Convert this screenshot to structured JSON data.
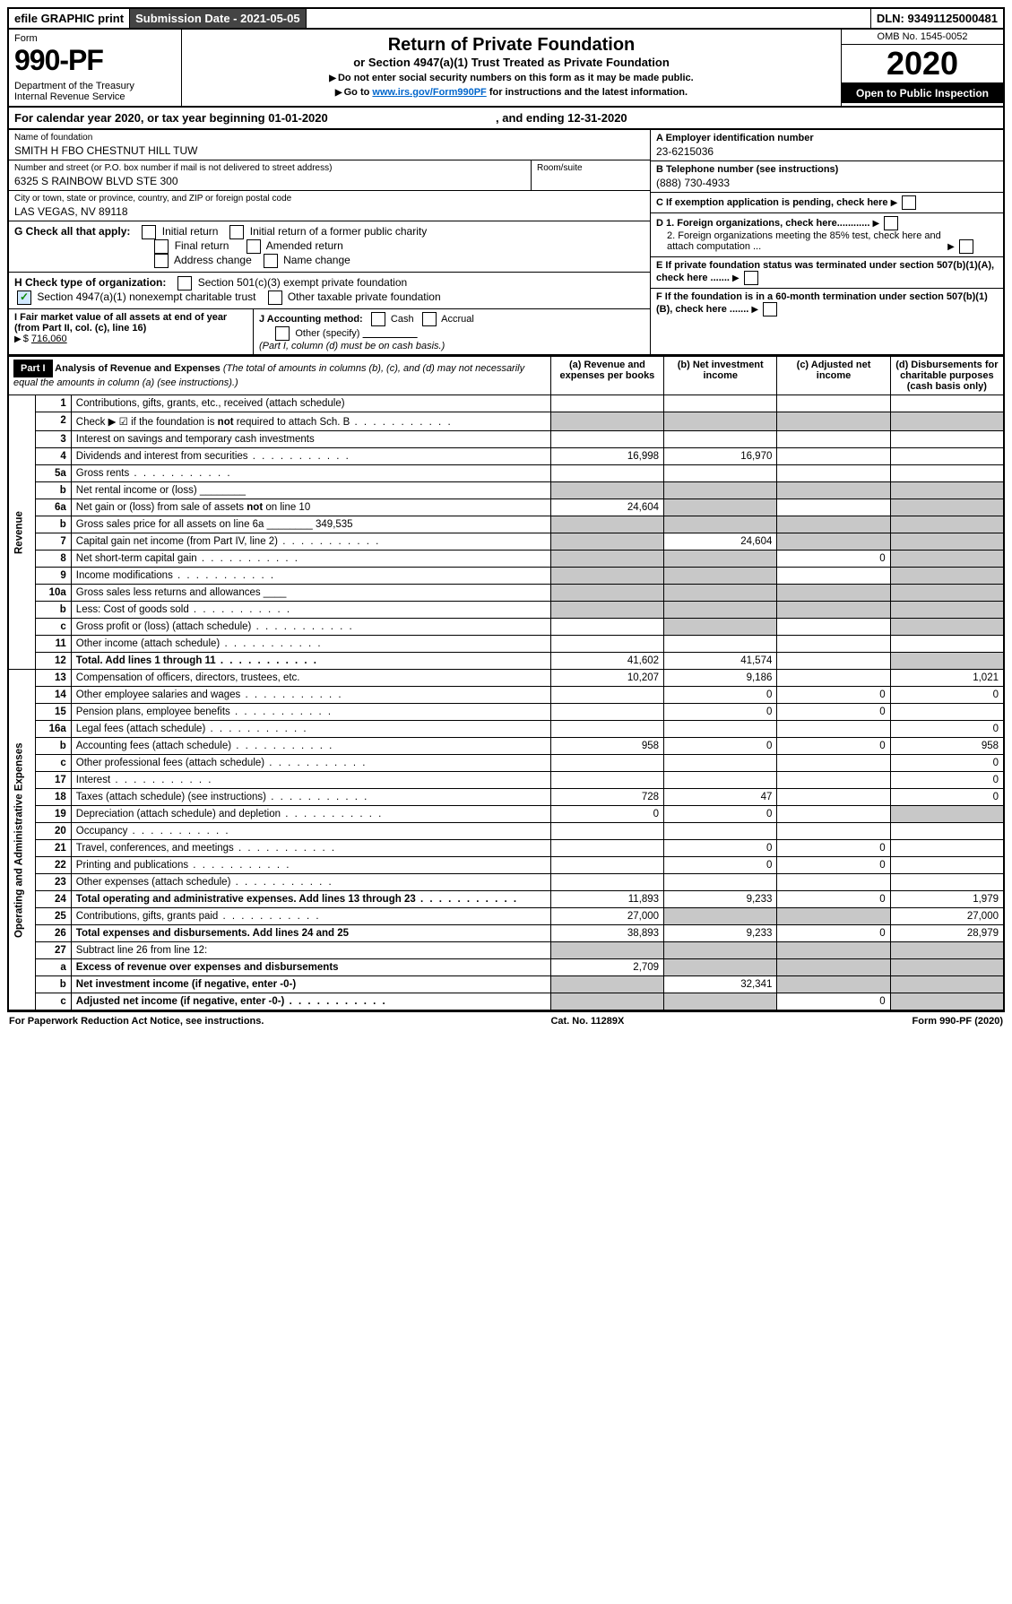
{
  "topbar": {
    "graphic": "efile GRAPHIC print",
    "subdate_label": "Submission Date - 2021-05-05",
    "dln": "DLN: 93491125000481"
  },
  "header": {
    "form_label": "Form",
    "form_no": "990-PF",
    "dept": "Department of the Treasury\nInternal Revenue Service",
    "title": "Return of Private Foundation",
    "subtitle": "or Section 4947(a)(1) Trust Treated as Private Foundation",
    "instr1": "Do not enter social security numbers on this form as it may be made public.",
    "instr2_pre": "Go to ",
    "instr2_link": "www.irs.gov/Form990PF",
    "instr2_post": " for instructions and the latest information.",
    "omb": "OMB No. 1545-0052",
    "year": "2020",
    "open": "Open to Public Inspection"
  },
  "calrow": {
    "pre": "For calendar year 2020, or tax year beginning ",
    "begin": "01-01-2020",
    "mid": " , and ending ",
    "end": "12-31-2020"
  },
  "info": {
    "name_lbl": "Name of foundation",
    "name": "SMITH H FBO CHESTNUT HILL TUW",
    "addr_lbl": "Number and street (or P.O. box number if mail is not delivered to street address)",
    "addr": "6325 S RAINBOW BLVD STE 300",
    "room_lbl": "Room/suite",
    "city_lbl": "City or town, state or province, country, and ZIP or foreign postal code",
    "city": "LAS VEGAS, NV  89118",
    "A_lbl": "A Employer identification number",
    "A": "23-6215036",
    "B_lbl": "B Telephone number (see instructions)",
    "B": "(888) 730-4933",
    "C": "C If exemption application is pending, check here",
    "D1": "D 1. Foreign organizations, check here............",
    "D2": "2. Foreign organizations meeting the 85% test, check here and attach computation ...",
    "E": "E  If private foundation status was terminated under section 507(b)(1)(A), check here .......",
    "F": "F  If the foundation is in a 60-month termination under section 507(b)(1)(B), check here ......."
  },
  "G": {
    "label": "G Check all that apply:",
    "o1": "Initial return",
    "o2": "Initial return of a former public charity",
    "o3": "Final return",
    "o4": "Amended return",
    "o5": "Address change",
    "o6": "Name change"
  },
  "H": {
    "label": "H Check type of organization:",
    "o1": "Section 501(c)(3) exempt private foundation",
    "o2": "Section 4947(a)(1) nonexempt charitable trust",
    "o3": "Other taxable private foundation"
  },
  "I": {
    "label": "I Fair market value of all assets at end of year (from Part II, col. (c), line 16)",
    "val": "716,060"
  },
  "J": {
    "label": "J Accounting method:",
    "o1": "Cash",
    "o2": "Accrual",
    "o3": "Other (specify)",
    "note": "(Part I, column (d) must be on cash basis.)"
  },
  "part1": {
    "label": "Part I",
    "title": "Analysis of Revenue and Expenses",
    "titlenote": " (The total of amounts in columns (b), (c), and (d) may not necessarily equal the amounts in column (a) (see instructions).)",
    "cols": {
      "a": "(a)   Revenue and expenses per books",
      "b": "(b)  Net investment income",
      "c": "(c)  Adjusted net income",
      "d": "(d)  Disbursements for charitable purposes (cash basis only)"
    }
  },
  "sections": {
    "rev": "Revenue",
    "exp": "Operating and Administrative Expenses"
  },
  "rows": [
    {
      "n": "1",
      "d": "Contributions, gifts, grants, etc., received (attach schedule)",
      "a": "",
      "b": "",
      "c": "",
      "dd": ""
    },
    {
      "n": "2",
      "d": "Check ▶ ☑ if the foundation is not required to attach Sch. B",
      "dots": true,
      "a": "",
      "b": "",
      "c": "",
      "dd": "",
      "shadeA": true,
      "shadeB": true,
      "shadeC": true,
      "shadeD": true
    },
    {
      "n": "3",
      "d": "Interest on savings and temporary cash investments",
      "a": "",
      "b": "",
      "c": "",
      "dd": ""
    },
    {
      "n": "4",
      "d": "Dividends and interest from securities",
      "dots": true,
      "a": "16,998",
      "b": "16,970",
      "c": "",
      "dd": ""
    },
    {
      "n": "5a",
      "d": "Gross rents",
      "dots": true,
      "a": "",
      "b": "",
      "c": "",
      "dd": ""
    },
    {
      "n": "b",
      "d": "Net rental income or (loss)  ________",
      "a": "",
      "b": "",
      "c": "",
      "dd": "",
      "shadeA": true,
      "shadeB": true,
      "shadeC": true,
      "shadeD": true
    },
    {
      "n": "6a",
      "d": "Net gain or (loss) from sale of assets not on line 10",
      "a": "24,604",
      "b": "",
      "c": "",
      "dd": "",
      "shadeB": true,
      "shadeD": true
    },
    {
      "n": "b",
      "d": "Gross sales price for all assets on line 6a ________ 349,535",
      "a": "",
      "b": "",
      "c": "",
      "dd": "",
      "shadeA": true,
      "shadeB": true,
      "shadeC": true,
      "shadeD": true
    },
    {
      "n": "7",
      "d": "Capital gain net income (from Part IV, line 2)",
      "dots": true,
      "a": "",
      "b": "24,604",
      "c": "",
      "dd": "",
      "shadeA": true,
      "shadeC": true,
      "shadeD": true
    },
    {
      "n": "8",
      "d": "Net short-term capital gain",
      "dots": true,
      "a": "",
      "b": "",
      "c": "0",
      "dd": "",
      "shadeA": true,
      "shadeB": true,
      "shadeD": true
    },
    {
      "n": "9",
      "d": "Income modifications",
      "dots": true,
      "a": "",
      "b": "",
      "c": "",
      "dd": "",
      "shadeA": true,
      "shadeB": true,
      "shadeD": true
    },
    {
      "n": "10a",
      "d": "Gross sales less returns and allowances  ____",
      "a": "",
      "b": "",
      "c": "",
      "dd": "",
      "shadeA": true,
      "shadeB": true,
      "shadeC": true,
      "shadeD": true
    },
    {
      "n": "b",
      "d": "Less: Cost of goods sold",
      "dots": true,
      "a": "",
      "b": "",
      "c": "",
      "dd": "",
      "shadeA": true,
      "shadeB": true,
      "shadeC": true,
      "shadeD": true
    },
    {
      "n": "c",
      "d": "Gross profit or (loss) (attach schedule)",
      "dots": true,
      "a": "",
      "b": "",
      "c": "",
      "dd": "",
      "shadeB": true,
      "shadeD": true
    },
    {
      "n": "11",
      "d": "Other income (attach schedule)",
      "dots": true,
      "a": "",
      "b": "",
      "c": "",
      "dd": ""
    },
    {
      "n": "12",
      "d": "Total. Add lines 1 through 11",
      "bold": true,
      "dots": true,
      "a": "41,602",
      "b": "41,574",
      "c": "",
      "dd": "",
      "shadeD": true
    },
    {
      "n": "13",
      "d": "Compensation of officers, directors, trustees, etc.",
      "a": "10,207",
      "b": "9,186",
      "c": "",
      "dd": "1,021"
    },
    {
      "n": "14",
      "d": "Other employee salaries and wages",
      "dots": true,
      "a": "",
      "b": "0",
      "c": "0",
      "dd": "0"
    },
    {
      "n": "15",
      "d": "Pension plans, employee benefits",
      "dots": true,
      "a": "",
      "b": "0",
      "c": "0",
      "dd": ""
    },
    {
      "n": "16a",
      "d": "Legal fees (attach schedule)",
      "dots": true,
      "a": "",
      "b": "",
      "c": "",
      "dd": "0"
    },
    {
      "n": "b",
      "d": "Accounting fees (attach schedule)",
      "dots": true,
      "a": "958",
      "b": "0",
      "c": "0",
      "dd": "958"
    },
    {
      "n": "c",
      "d": "Other professional fees (attach schedule)",
      "dots": true,
      "a": "",
      "b": "",
      "c": "",
      "dd": "0"
    },
    {
      "n": "17",
      "d": "Interest",
      "dots": true,
      "a": "",
      "b": "",
      "c": "",
      "dd": "0"
    },
    {
      "n": "18",
      "d": "Taxes (attach schedule) (see instructions)",
      "dots": true,
      "a": "728",
      "b": "47",
      "c": "",
      "dd": "0"
    },
    {
      "n": "19",
      "d": "Depreciation (attach schedule) and depletion",
      "dots": true,
      "a": "0",
      "b": "0",
      "c": "",
      "dd": "",
      "shadeD": true
    },
    {
      "n": "20",
      "d": "Occupancy",
      "dots": true,
      "a": "",
      "b": "",
      "c": "",
      "dd": ""
    },
    {
      "n": "21",
      "d": "Travel, conferences, and meetings",
      "dots": true,
      "a": "",
      "b": "0",
      "c": "0",
      "dd": ""
    },
    {
      "n": "22",
      "d": "Printing and publications",
      "dots": true,
      "a": "",
      "b": "0",
      "c": "0",
      "dd": ""
    },
    {
      "n": "23",
      "d": "Other expenses (attach schedule)",
      "dots": true,
      "a": "",
      "b": "",
      "c": "",
      "dd": ""
    },
    {
      "n": "24",
      "d": "Total operating and administrative expenses. Add lines 13 through 23",
      "bold": true,
      "dots": true,
      "a": "11,893",
      "b": "9,233",
      "c": "0",
      "dd": "1,979"
    },
    {
      "n": "25",
      "d": "Contributions, gifts, grants paid",
      "dots": true,
      "a": "27,000",
      "b": "",
      "c": "",
      "dd": "27,000",
      "shadeB": true,
      "shadeC": true
    },
    {
      "n": "26",
      "d": "Total expenses and disbursements. Add lines 24 and 25",
      "bold": true,
      "a": "38,893",
      "b": "9,233",
      "c": "0",
      "dd": "28,979"
    },
    {
      "n": "27",
      "d": "Subtract line 26 from line 12:",
      "a": "",
      "b": "",
      "c": "",
      "dd": "",
      "shadeA": true,
      "shadeB": true,
      "shadeC": true,
      "shadeD": true
    },
    {
      "n": "a",
      "d": "Excess of revenue over expenses and disbursements",
      "bold": true,
      "a": "2,709",
      "b": "",
      "c": "",
      "dd": "",
      "shadeB": true,
      "shadeC": true,
      "shadeD": true
    },
    {
      "n": "b",
      "d": "Net investment income (if negative, enter -0-)",
      "bold": true,
      "a": "",
      "b": "32,341",
      "c": "",
      "dd": "",
      "shadeA": true,
      "shadeC": true,
      "shadeD": true
    },
    {
      "n": "c",
      "d": "Adjusted net income (if negative, enter -0-)",
      "bold": true,
      "dots": true,
      "a": "",
      "b": "",
      "c": "0",
      "dd": "",
      "shadeA": true,
      "shadeB": true,
      "shadeD": true
    }
  ],
  "footer": {
    "left": "For Paperwork Reduction Act Notice, see instructions.",
    "mid": "Cat. No. 11289X",
    "right": "Form 990-PF (2020)"
  }
}
